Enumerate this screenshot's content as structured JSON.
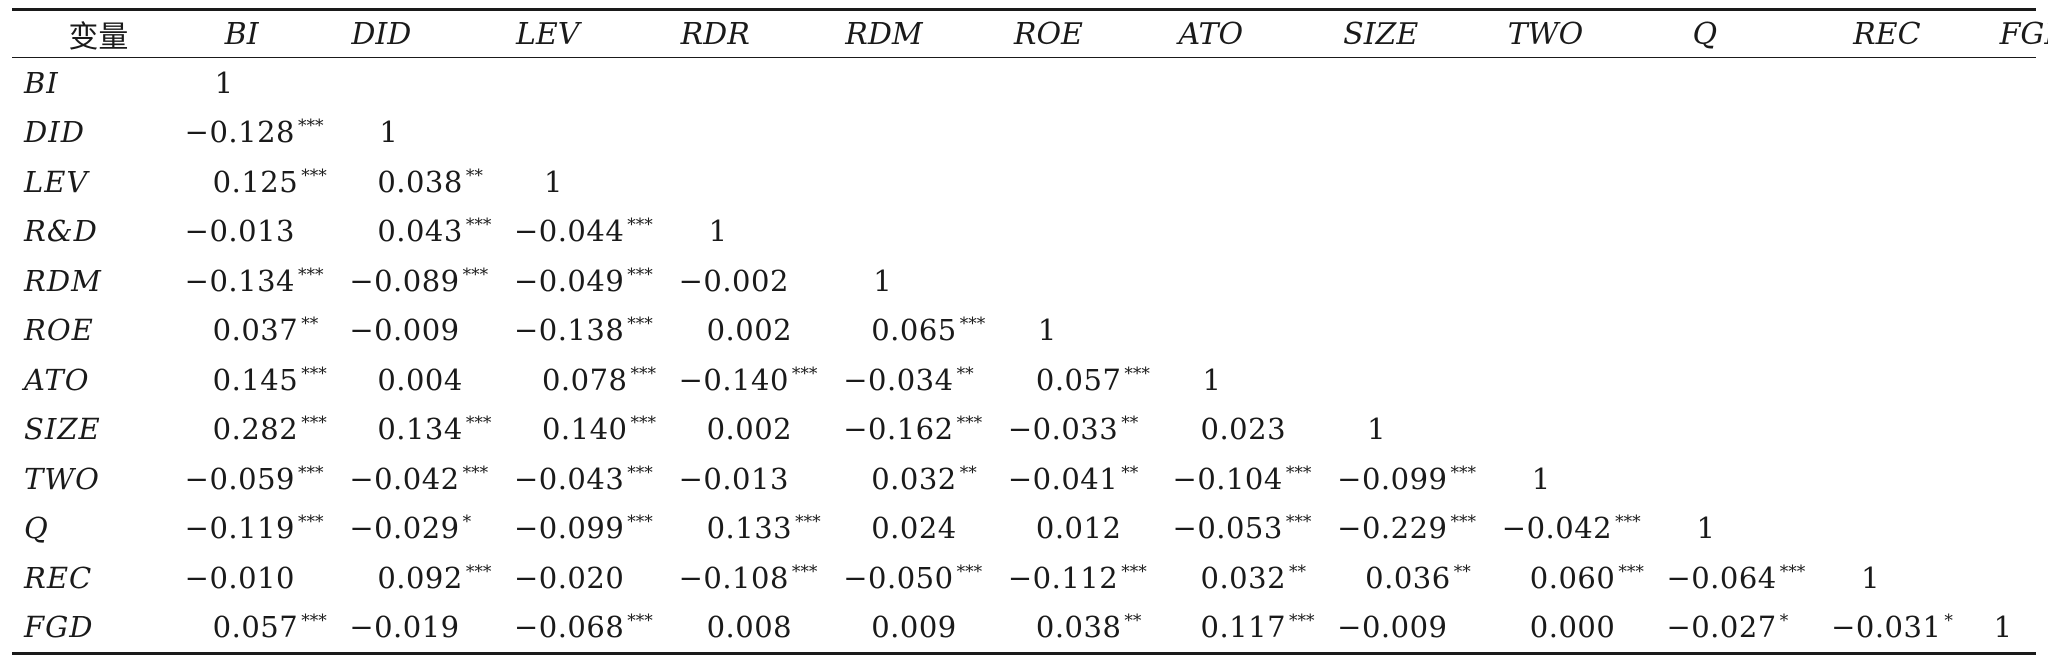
{
  "table": {
    "header": [
      "变量",
      "BI",
      "DID",
      "LEV",
      "RDR",
      "RDM",
      "ROE",
      "ATO",
      "SIZE",
      "TWO",
      "Q",
      "REC",
      "FGD"
    ],
    "rows": [
      {
        "label": "BI",
        "cells": [
          {
            "v": "1",
            "s": ""
          }
        ]
      },
      {
        "label": "DID",
        "cells": [
          {
            "v": "−0.128",
            "s": "***"
          },
          {
            "v": "1",
            "s": ""
          }
        ]
      },
      {
        "label": "LEV",
        "cells": [
          {
            "v": "0.125",
            "s": "***"
          },
          {
            "v": "0.038",
            "s": "**"
          },
          {
            "v": "1",
            "s": ""
          }
        ]
      },
      {
        "label": "R&D",
        "cells": [
          {
            "v": "−0.013",
            "s": ""
          },
          {
            "v": "0.043",
            "s": "***"
          },
          {
            "v": "−0.044",
            "s": "***"
          },
          {
            "v": "1",
            "s": ""
          }
        ]
      },
      {
        "label": "RDM",
        "cells": [
          {
            "v": "−0.134",
            "s": "***"
          },
          {
            "v": "−0.089",
            "s": "***"
          },
          {
            "v": "−0.049",
            "s": "***"
          },
          {
            "v": "−0.002",
            "s": ""
          },
          {
            "v": "1",
            "s": ""
          }
        ]
      },
      {
        "label": "ROE",
        "cells": [
          {
            "v": "0.037",
            "s": "**"
          },
          {
            "v": "−0.009",
            "s": ""
          },
          {
            "v": "−0.138",
            "s": "***"
          },
          {
            "v": "0.002",
            "s": ""
          },
          {
            "v": "0.065",
            "s": "***"
          },
          {
            "v": "1",
            "s": ""
          }
        ]
      },
      {
        "label": "ATO",
        "cells": [
          {
            "v": "0.145",
            "s": "***"
          },
          {
            "v": "0.004",
            "s": ""
          },
          {
            "v": "0.078",
            "s": "***"
          },
          {
            "v": "−0.140",
            "s": "***"
          },
          {
            "v": "−0.034",
            "s": "**"
          },
          {
            "v": "0.057",
            "s": "***"
          },
          {
            "v": "1",
            "s": ""
          }
        ]
      },
      {
        "label": "SIZE",
        "cells": [
          {
            "v": "0.282",
            "s": "***"
          },
          {
            "v": "0.134",
            "s": "***"
          },
          {
            "v": "0.140",
            "s": "***"
          },
          {
            "v": "0.002",
            "s": ""
          },
          {
            "v": "−0.162",
            "s": "***"
          },
          {
            "v": "−0.033",
            "s": "**"
          },
          {
            "v": "0.023",
            "s": ""
          },
          {
            "v": "1",
            "s": ""
          }
        ]
      },
      {
        "label": "TWO",
        "cells": [
          {
            "v": "−0.059",
            "s": "***"
          },
          {
            "v": "−0.042",
            "s": "***"
          },
          {
            "v": "−0.043",
            "s": "***"
          },
          {
            "v": "−0.013",
            "s": ""
          },
          {
            "v": "0.032",
            "s": "**"
          },
          {
            "v": "−0.041",
            "s": "**"
          },
          {
            "v": "−0.104",
            "s": "***"
          },
          {
            "v": "−0.099",
            "s": "***"
          },
          {
            "v": "1",
            "s": ""
          }
        ]
      },
      {
        "label": "Q",
        "cells": [
          {
            "v": "−0.119",
            "s": "***"
          },
          {
            "v": "−0.029",
            "s": "*"
          },
          {
            "v": "−0.099",
            "s": "***"
          },
          {
            "v": "0.133",
            "s": "***"
          },
          {
            "v": "0.024",
            "s": ""
          },
          {
            "v": "0.012",
            "s": ""
          },
          {
            "v": "−0.053",
            "s": "***"
          },
          {
            "v": "−0.229",
            "s": "***"
          },
          {
            "v": "−0.042",
            "s": "***"
          },
          {
            "v": "1",
            "s": ""
          }
        ]
      },
      {
        "label": "REC",
        "cells": [
          {
            "v": "−0.010",
            "s": ""
          },
          {
            "v": "0.092",
            "s": "***"
          },
          {
            "v": "−0.020",
            "s": ""
          },
          {
            "v": "−0.108",
            "s": "***"
          },
          {
            "v": "−0.050",
            "s": "***"
          },
          {
            "v": "−0.112",
            "s": "***"
          },
          {
            "v": "0.032",
            "s": "**"
          },
          {
            "v": "0.036",
            "s": "**"
          },
          {
            "v": "0.060",
            "s": "***"
          },
          {
            "v": "−0.064",
            "s": "***"
          },
          {
            "v": "1",
            "s": ""
          }
        ]
      },
      {
        "label": "FGD",
        "cells": [
          {
            "v": "0.057",
            "s": "***"
          },
          {
            "v": "−0.019",
            "s": ""
          },
          {
            "v": "−0.068",
            "s": "***"
          },
          {
            "v": "0.008",
            "s": ""
          },
          {
            "v": "0.009",
            "s": ""
          },
          {
            "v": "0.038",
            "s": "**"
          },
          {
            "v": "0.117",
            "s": "***"
          },
          {
            "v": "−0.009",
            "s": ""
          },
          {
            "v": "0.000",
            "s": ""
          },
          {
            "v": "−0.027",
            "s": "*"
          },
          {
            "v": "−0.031",
            "s": "*"
          },
          {
            "v": "1",
            "s": ""
          }
        ]
      }
    ]
  }
}
